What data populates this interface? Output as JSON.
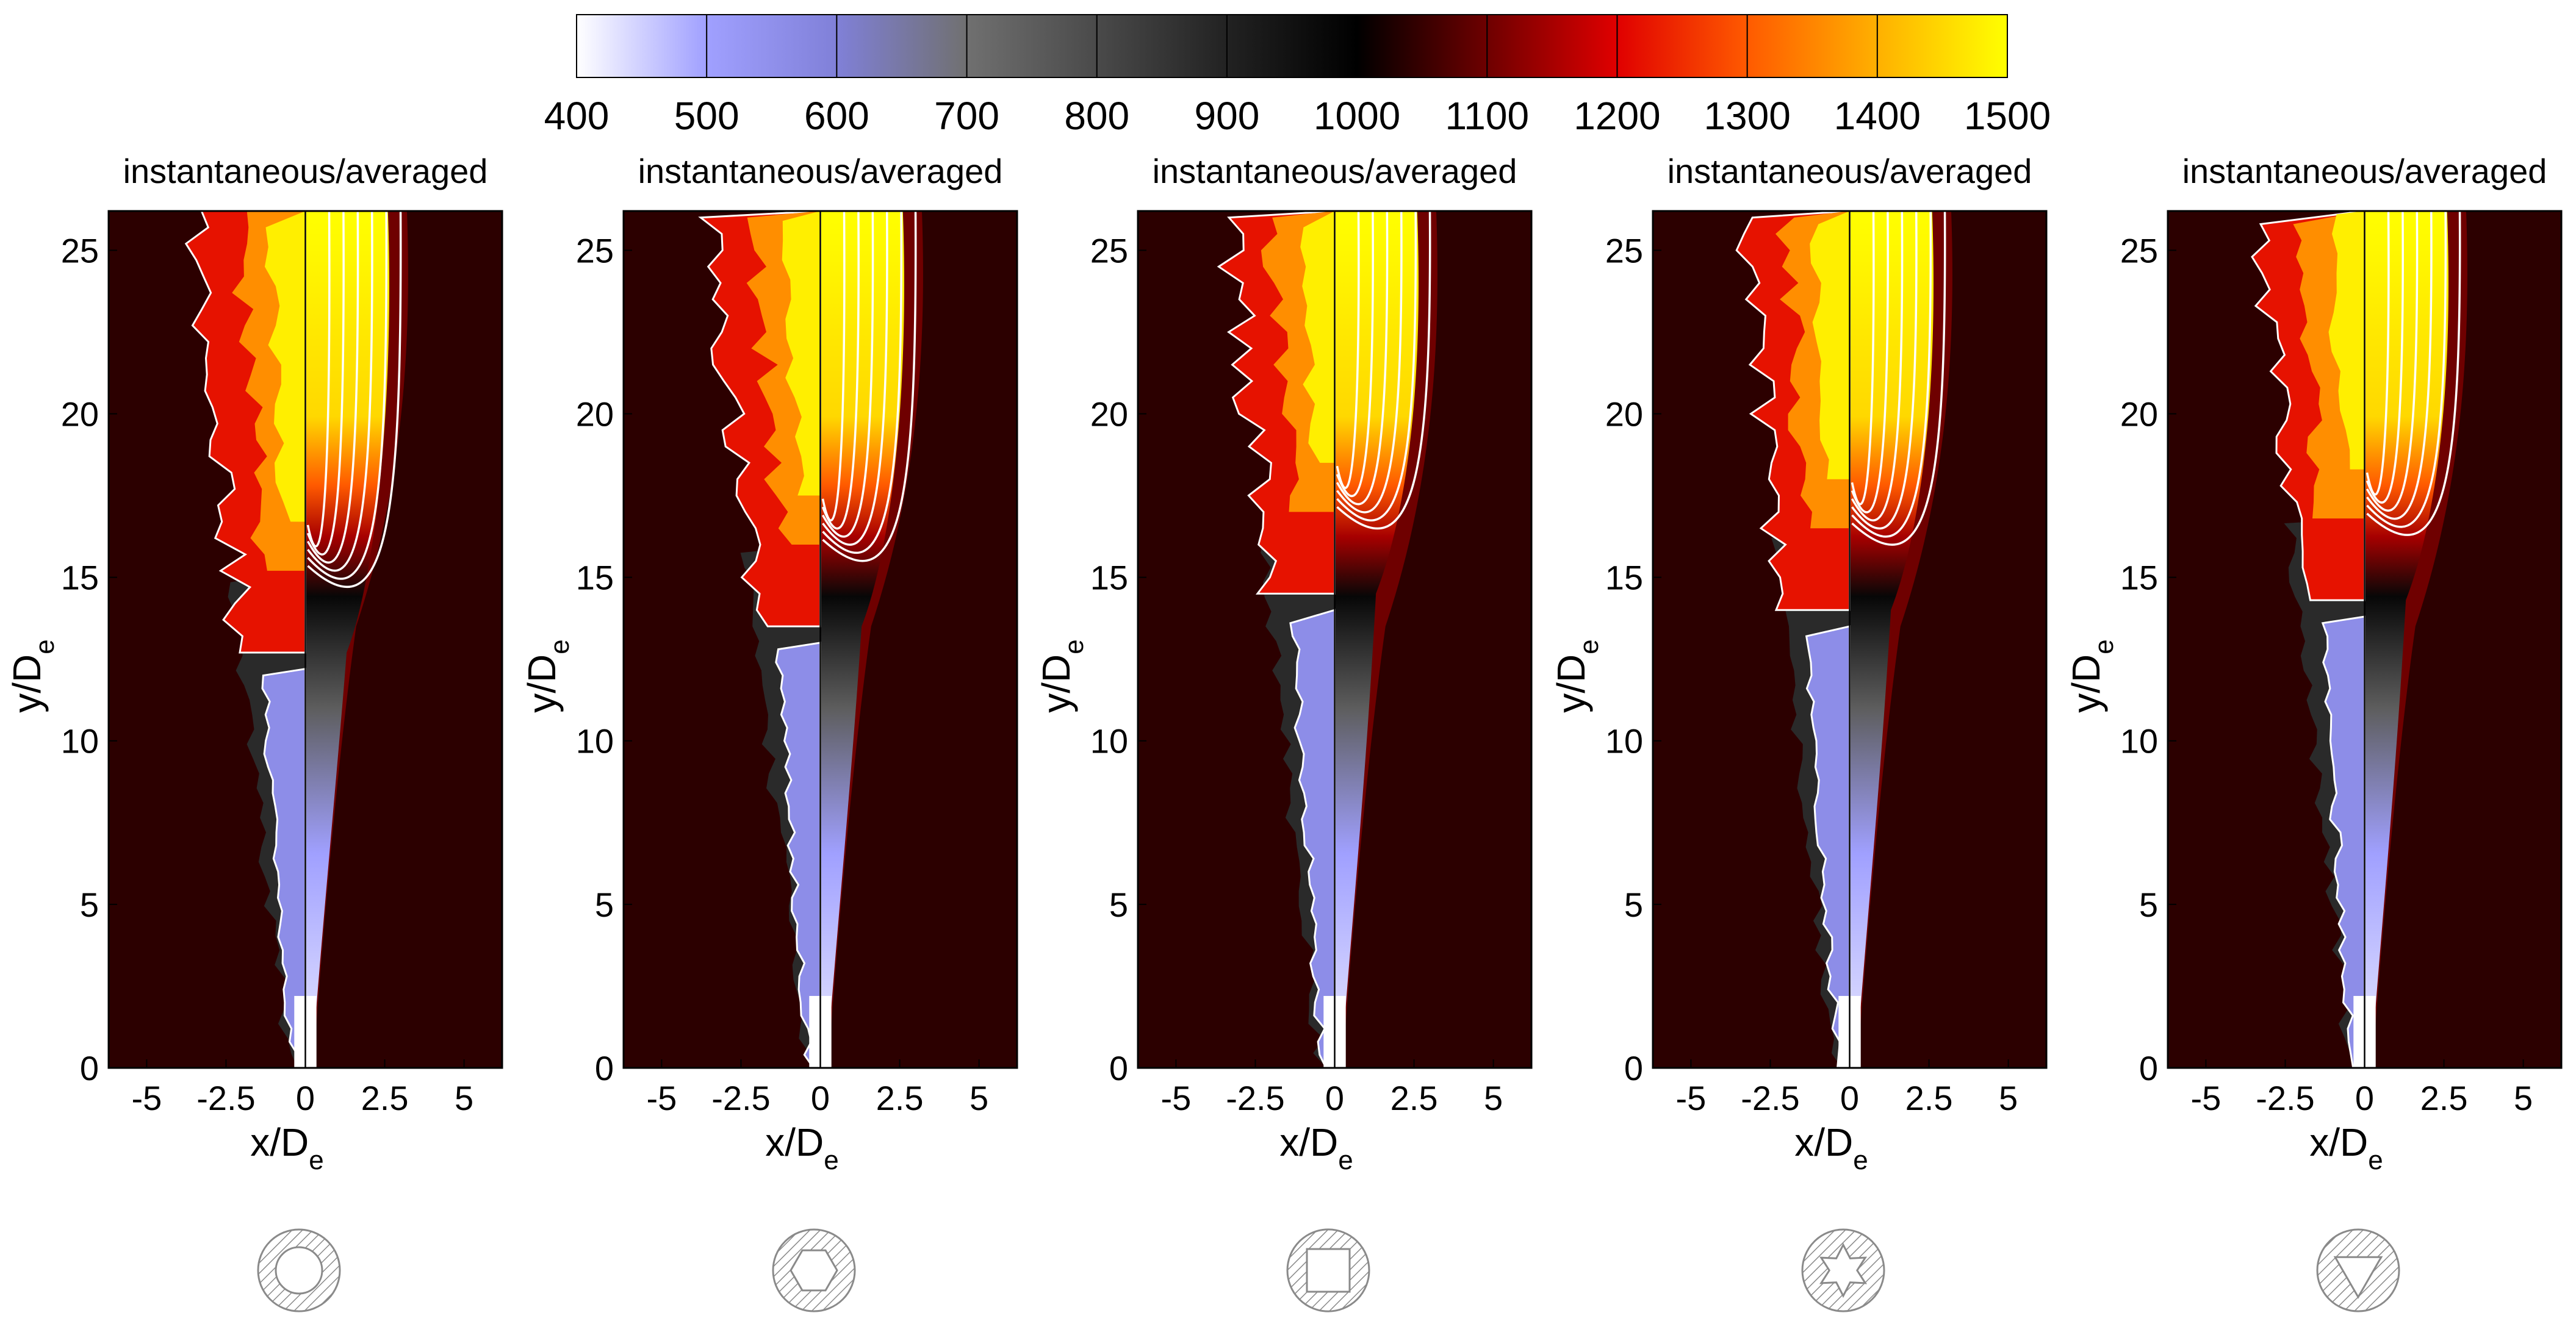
{
  "chart_data": {
    "type": "heatmap",
    "colorbar": {
      "ticks": [
        "400",
        "500",
        "600",
        "700",
        "800",
        "900",
        "1000",
        "1100",
        "1200",
        "1300",
        "1400",
        "1500"
      ],
      "range": [
        400,
        1500
      ],
      "colormap": [
        {
          "value": 400,
          "color": "#ffffff"
        },
        {
          "value": 500,
          "color": "#a0a0ff"
        },
        {
          "value": 600,
          "color": "#8080d8"
        },
        {
          "value": 700,
          "color": "#707070"
        },
        {
          "value": 800,
          "color": "#4a4a4a"
        },
        {
          "value": 900,
          "color": "#222222"
        },
        {
          "value": 1000,
          "color": "#000000"
        },
        {
          "value": 1100,
          "color": "#6e0000"
        },
        {
          "value": 1200,
          "color": "#e00000"
        },
        {
          "value": 1300,
          "color": "#ff5a00"
        },
        {
          "value": 1400,
          "color": "#ffb000"
        },
        {
          "value": 1500,
          "color": "#ffff00"
        }
      ]
    },
    "panel_title": "instantaneous/averaged",
    "xlabel": "x/D",
    "xlabel_sub": "e",
    "ylabel": "y/D",
    "ylabel_sub": "e",
    "xlim": [
      -6.2,
      6.2
    ],
    "ylim": [
      0,
      26.2
    ],
    "xticks": [
      "-5",
      "-2.5",
      "0",
      "2.5",
      "5"
    ],
    "yticks": [
      "0",
      "5",
      "10",
      "15",
      "20",
      "25"
    ],
    "xtick_values": [
      -5,
      -2.5,
      0,
      2.5,
      5
    ],
    "ytick_values": [
      0,
      5,
      10,
      15,
      20,
      25
    ],
    "panels": [
      {
        "nozzle": "circle",
        "liftoff_y": 15.2,
        "core_length": 12.5
      },
      {
        "nozzle": "hexagon",
        "liftoff_y": 16.0,
        "core_length": 13.0
      },
      {
        "nozzle": "square",
        "liftoff_y": 17.0,
        "core_length": 13.5
      },
      {
        "nozzle": "hexagram",
        "liftoff_y": 16.5,
        "core_length": 13.0
      },
      {
        "nozzle": "triangle",
        "liftoff_y": 16.8,
        "core_length": 12.0
      }
    ]
  }
}
